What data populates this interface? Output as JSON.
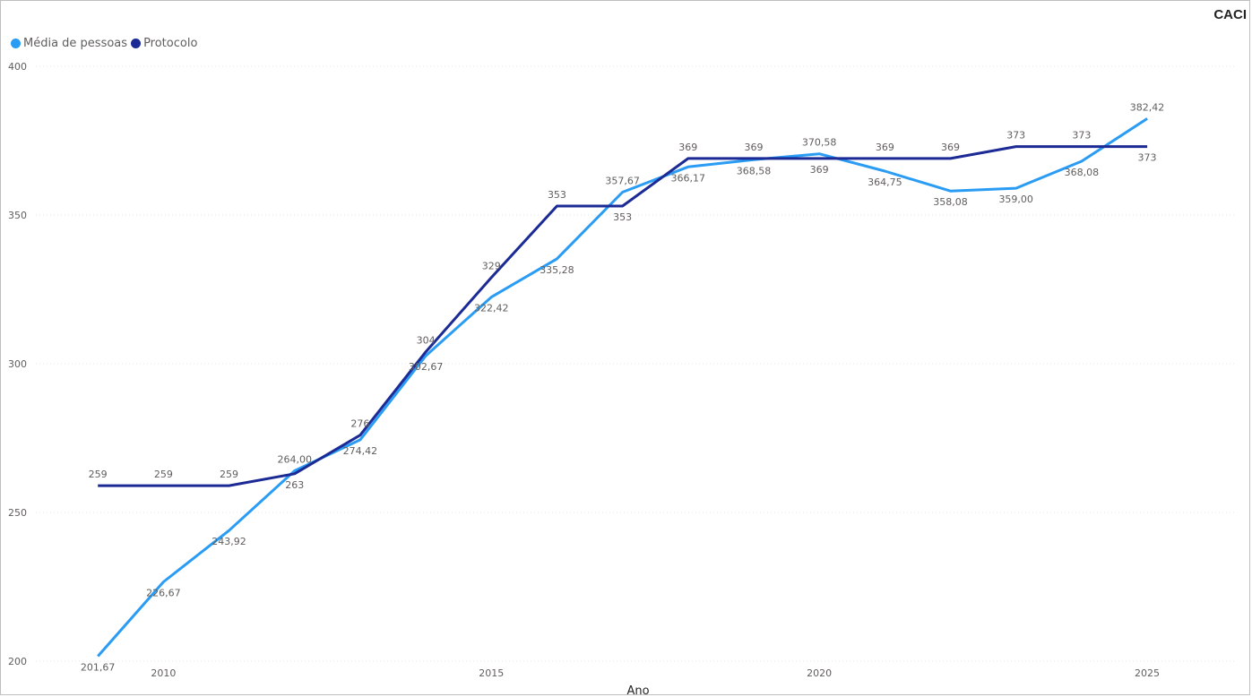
{
  "chart_data": {
    "type": "line",
    "title": "CACI",
    "xlabel": "Ano",
    "ylabel": "",
    "ylim": [
      200,
      400
    ],
    "yticks": [
      200,
      250,
      300,
      350,
      400
    ],
    "xticks": [
      2010,
      2015,
      2020,
      2025
    ],
    "grid": true,
    "legend_position": "top-left",
    "x": [
      2009,
      2010,
      2011,
      2012,
      2013,
      2014,
      2015,
      2016,
      2017,
      2018,
      2019,
      2020,
      2021,
      2022,
      2023,
      2024,
      2025
    ],
    "series": [
      {
        "name": "Média de pessoas",
        "color": "#2a9cf4",
        "values": [
          201.67,
          226.67,
          243.92,
          264.0,
          274.42,
          302.67,
          322.42,
          335.28,
          357.67,
          366.17,
          368.58,
          370.58,
          364.75,
          358.08,
          359.0,
          368.08,
          382.42
        ],
        "labels": [
          "201,67",
          "226,67",
          "243,92",
          "264,00",
          "274,42",
          "302,67",
          "322,42",
          "335,28",
          "357,67",
          "366,17",
          "368,58",
          "370,58",
          "364,75",
          "358,08",
          "359,00",
          "368,08",
          "382,42"
        ]
      },
      {
        "name": "Protocolo",
        "color": "#1b2a94",
        "values": [
          259,
          259,
          259,
          263,
          276,
          304,
          329,
          353,
          353,
          369,
          369,
          369,
          369,
          369,
          373,
          373,
          373
        ],
        "labels": [
          "259",
          "259",
          "259",
          "263",
          "276",
          "304",
          "329",
          "353",
          "353",
          "369",
          "369",
          "369",
          "369",
          "369",
          "373",
          "373",
          "373"
        ]
      }
    ]
  }
}
